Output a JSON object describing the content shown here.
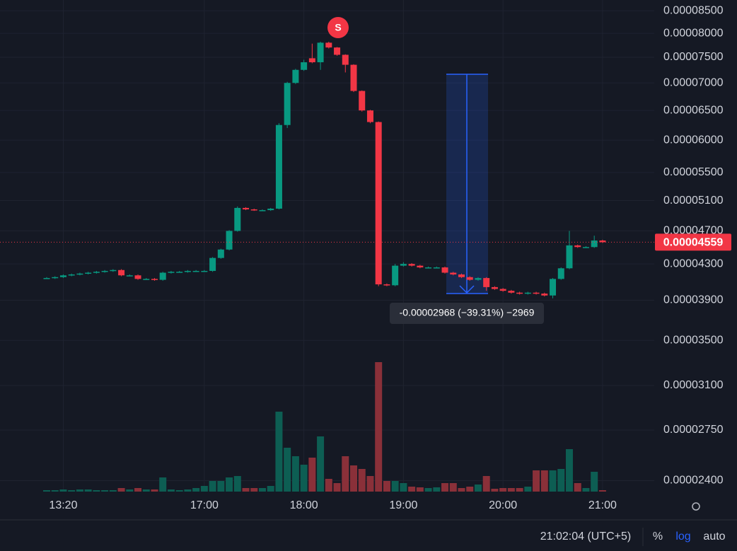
{
  "chart_data": {
    "type": "candlestick",
    "log_scale": true,
    "grid": true,
    "up_color": "#089981",
    "down_color": "#f23645",
    "up_volume_color": "#0d5e53",
    "down_volume_color": "#8a3039",
    "categories": [
      null,
      null,
      "13:20",
      null,
      null,
      null,
      null,
      null,
      null,
      null,
      null,
      null,
      null,
      null,
      null,
      null,
      null,
      null,
      null,
      "17:00",
      null,
      null,
      null,
      null,
      null,
      null,
      null,
      null,
      null,
      null,
      null,
      "18:00",
      null,
      null,
      null,
      null,
      null,
      null,
      null,
      null,
      null,
      null,
      null,
      "19:00",
      null,
      null,
      null,
      null,
      null,
      null,
      null,
      null,
      null,
      null,
      null,
      "20:00",
      null,
      null,
      null,
      null,
      null,
      null,
      null,
      null,
      null,
      null,
      null,
      "21:00"
    ],
    "open": [
      4.14e-05,
      4.14e-05,
      4.15e-05,
      4.17e-05,
      4.18e-05,
      4.19e-05,
      4.2e-05,
      4.21e-05,
      4.22e-05,
      4.23e-05,
      4.17e-05,
      4.17e-05,
      4.13e-05,
      4.13e-05,
      4.12e-05,
      4.2e-05,
      4.21e-05,
      4.21e-05,
      4.22e-05,
      4.22e-05,
      4.22e-05,
      4.37e-05,
      4.47e-05,
      4.7e-05,
      5e-05,
      4.98e-05,
      4.97e-05,
      4.97e-05,
      4.99e-05,
      6.25e-05,
      7e-05,
      7.25e-05,
      7.48e-05,
      7.4e-05,
      7.8e-05,
      7.7e-05,
      7.55e-05,
      7.35e-05,
      6.85e-05,
      6.5e-05,
      6.3e-05,
      4.07e-05,
      4.06e-05,
      4.28e-05,
      4.3e-05,
      4.28e-05,
      4.26e-05,
      4.26e-05,
      4.26e-05,
      4.2e-05,
      4.18e-05,
      4.15e-05,
      4.12e-05,
      4.14e-05,
      4.04e-05,
      4.02e-05,
      4e-05,
      3.98e-05,
      3.97e-05,
      3.98e-05,
      3.97e-05,
      3.95e-05,
      4.13e-05,
      4.25e-05,
      4.52e-05,
      4.5e-05,
      4.5e-05,
      4.58e-05
    ],
    "high": [
      4.15e-05,
      4.16e-05,
      4.18e-05,
      4.19e-05,
      4.2e-05,
      4.21e-05,
      4.22e-05,
      4.23e-05,
      4.24e-05,
      4.24e-05,
      4.18e-05,
      4.18e-05,
      4.14e-05,
      4.14e-05,
      4.21e-05,
      4.22e-05,
      4.22e-05,
      4.23e-05,
      4.23e-05,
      4.23e-05,
      4.38e-05,
      4.48e-05,
      4.71e-05,
      5.02e-05,
      5.01e-05,
      4.99e-05,
      4.98e-05,
      5e-05,
      6.28e-05,
      7.02e-05,
      7.27e-05,
      7.45e-05,
      7.78e-05,
      7.82e-05,
      7.82e-05,
      7.71e-05,
      7.56e-05,
      7.36e-05,
      6.86e-05,
      6.51e-05,
      6.31e-05,
      4.08e-05,
      4.3e-05,
      4.32e-05,
      4.31e-05,
      4.29e-05,
      4.27e-05,
      4.27e-05,
      4.27e-05,
      4.21e-05,
      4.19e-05,
      4.16e-05,
      4.15e-05,
      4.15e-05,
      4.05e-05,
      4.03e-05,
      4.01e-05,
      3.99e-05,
      3.99e-05,
      3.99e-05,
      3.98e-05,
      4.14e-05,
      4.26e-05,
      4.7e-05,
      4.53e-05,
      4.51e-05,
      4.64e-05,
      4.59e-05
    ],
    "low": [
      4.13e-05,
      4.13e-05,
      4.14e-05,
      4.16e-05,
      4.17e-05,
      4.18e-05,
      4.19e-05,
      4.2e-05,
      4.21e-05,
      4.16e-05,
      4.16e-05,
      4.12e-05,
      4.12e-05,
      4.11e-05,
      4.11e-05,
      4.19e-05,
      4.2e-05,
      4.2e-05,
      4.21e-05,
      4.21e-05,
      4.21e-05,
      4.36e-05,
      4.46e-05,
      4.69e-05,
      4.97e-05,
      4.96e-05,
      4.96e-05,
      4.96e-05,
      4.98e-05,
      6.2e-05,
      6.98e-05,
      7.23e-05,
      7.38e-05,
      7.25e-05,
      7.68e-05,
      7.53e-05,
      7.2e-05,
      6.83e-05,
      6.48e-05,
      6.28e-05,
      4.05e-05,
      4.05e-05,
      4.05e-05,
      4.27e-05,
      4.27e-05,
      4.25e-05,
      4.25e-05,
      4.25e-05,
      4.19e-05,
      4.17e-05,
      4.14e-05,
      4.11e-05,
      4.11e-05,
      4e-05,
      4.01e-05,
      3.99e-05,
      3.97e-05,
      3.96e-05,
      3.96e-05,
      3.96e-05,
      3.94e-05,
      3.92e-05,
      4.12e-05,
      4.24e-05,
      4.49e-05,
      4.49e-05,
      4.49e-05,
      4.55e-05
    ],
    "close": [
      4.14e-05,
      4.15e-05,
      4.17e-05,
      4.18e-05,
      4.19e-05,
      4.2e-05,
      4.21e-05,
      4.22e-05,
      4.23e-05,
      4.17e-05,
      4.17e-05,
      4.13e-05,
      4.13e-05,
      4.12e-05,
      4.2e-05,
      4.21e-05,
      4.21e-05,
      4.22e-05,
      4.22e-05,
      4.22e-05,
      4.37e-05,
      4.47e-05,
      4.7e-05,
      5e-05,
      4.98e-05,
      4.97e-05,
      4.97e-05,
      4.99e-05,
      6.25e-05,
      7e-05,
      7.25e-05,
      7.4e-05,
      7.4e-05,
      7.8e-05,
      7.7e-05,
      7.55e-05,
      7.35e-05,
      6.85e-05,
      6.5e-05,
      6.3e-05,
      4.07e-05,
      4.06e-05,
      4.28e-05,
      4.3e-05,
      4.28e-05,
      4.26e-05,
      4.26e-05,
      4.26e-05,
      4.2e-05,
      4.18e-05,
      4.15e-05,
      4.12e-05,
      4.14e-05,
      4.04e-05,
      4.02e-05,
      4e-05,
      3.98e-05,
      3.97e-05,
      3.98e-05,
      3.97e-05,
      3.95e-05,
      4.13e-05,
      4.25e-05,
      4.52e-05,
      4.5e-05,
      4.5e-05,
      4.58e-05,
      4.559e-05
    ],
    "volume": [
      2,
      2,
      3,
      2,
      3,
      3,
      2,
      2,
      2,
      5,
      3,
      5,
      3,
      3,
      20,
      3,
      2,
      3,
      5,
      8,
      15,
      15,
      20,
      22,
      5,
      5,
      5,
      8,
      113,
      62,
      50,
      38,
      48,
      78,
      18,
      12,
      50,
      37,
      32,
      22,
      183,
      15,
      15,
      12,
      7,
      6,
      5,
      6,
      12,
      12,
      5,
      7,
      10,
      22,
      4,
      5,
      5,
      5,
      7,
      30,
      30,
      30,
      32,
      60,
      12,
      5,
      28,
      2
    ],
    "ylim": [
      2.33e-05,
      8.75e-05
    ],
    "yticks": [
      {
        "value": 8.5e-05,
        "label": "0.00008500"
      },
      {
        "value": 8e-05,
        "label": "0.00008000"
      },
      {
        "value": 7.5e-05,
        "label": "0.00007500"
      },
      {
        "value": 7e-05,
        "label": "0.00007000"
      },
      {
        "value": 6.5e-05,
        "label": "0.00006500"
      },
      {
        "value": 6e-05,
        "label": "0.00006000"
      },
      {
        "value": 5.5e-05,
        "label": "0.00005500"
      },
      {
        "value": 5.1e-05,
        "label": "0.00005100"
      },
      {
        "value": 4.7e-05,
        "label": "0.00004700"
      },
      {
        "value": 4.3e-05,
        "label": "0.00004300"
      },
      {
        "value": 3.9e-05,
        "label": "0.00003900"
      },
      {
        "value": 3.5e-05,
        "label": "0.00003500"
      },
      {
        "value": 3.1e-05,
        "label": "0.00003100"
      },
      {
        "value": 2.75e-05,
        "label": "0.00002750"
      },
      {
        "value": 2.4e-05,
        "label": "0.00002400"
      }
    ],
    "last_price": {
      "value": 4.559e-05,
      "label": "0.00004559"
    },
    "signal_label": "S",
    "measure_label": "-0.00002968 (−39.31%) −2969"
  },
  "footer": {
    "clock": "21:02:04 (UTC+5)",
    "percent": "%",
    "log": "log",
    "auto": "auto"
  }
}
